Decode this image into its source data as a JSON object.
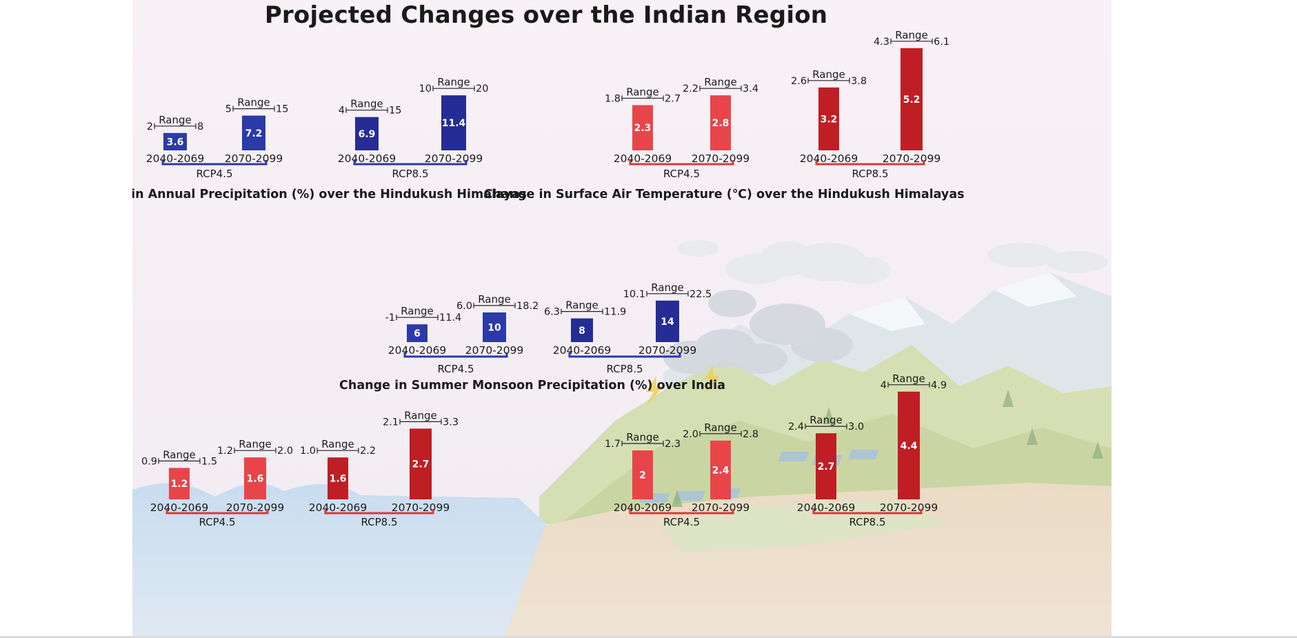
{
  "title": "Projected Changes over the Indian Region",
  "labels": {
    "range": "Range"
  },
  "colors": {
    "precip_rcp45": "#2b3aa8",
    "precip_rcp85": "#262c96",
    "temp_rcp45": "#e8454a",
    "temp_rcp85": "#bf1e24",
    "bracket_blue": "#2d37a4",
    "bracket_red": "#d63a3f",
    "bar_text": "#ffffff"
  },
  "chart_data": [
    {
      "type": "bar",
      "title": "Change in Annual Precipitation (%) over the Hindukush Himalayas",
      "unit_color": "blue",
      "groups": [
        {
          "name": "RCP4.5",
          "categories": [
            "2040-2069",
            "2070-2099"
          ],
          "values": [
            3.6,
            7.2
          ],
          "range": [
            [
              "2",
              "8"
            ],
            [
              "5",
              "15"
            ]
          ]
        },
        {
          "name": "RCP8.5",
          "categories": [
            "2040-2069",
            "2070-2099"
          ],
          "values": [
            6.9,
            11.4
          ],
          "range": [
            [
              "4",
              "15"
            ],
            [
              "10",
              "20"
            ]
          ]
        }
      ]
    },
    {
      "type": "bar",
      "title": "Change in Surface Air Temperature (℃) over the Hindukush Himalayas",
      "unit_color": "red",
      "groups": [
        {
          "name": "RCP4.5",
          "categories": [
            "2040-2069",
            "2070-2099"
          ],
          "values": [
            2.3,
            2.8
          ],
          "range": [
            [
              "1.8",
              "2.7"
            ],
            [
              "2.2",
              "3.4"
            ]
          ]
        },
        {
          "name": "RCP8.5",
          "categories": [
            "2040-2069",
            "2070-2099"
          ],
          "values": [
            3.2,
            5.2
          ],
          "range": [
            [
              "2.6",
              "3.8"
            ],
            [
              "4.3",
              "6.1"
            ]
          ]
        }
      ]
    },
    {
      "type": "bar",
      "title": "Change in Summer Monsoon Precipitation (%) over India",
      "unit_color": "blue",
      "groups": [
        {
          "name": "RCP4.5",
          "categories": [
            "2040-2069",
            "2070-2099"
          ],
          "values": [
            6,
            10
          ],
          "range": [
            [
              "-1",
              "11.4"
            ],
            [
              "6.0",
              "18.2"
            ]
          ]
        },
        {
          "name": "RCP8.5",
          "categories": [
            "2040-2069",
            "2070-2099"
          ],
          "values": [
            8,
            14
          ],
          "range": [
            [
              "6.3",
              "11.9"
            ],
            [
              "10.1",
              "22.5"
            ]
          ]
        }
      ]
    },
    {
      "type": "bar",
      "title": "",
      "unit_color": "red",
      "groups": [
        {
          "name": "RCP4.5",
          "categories": [
            "2040-2069",
            "2070-2099"
          ],
          "values": [
            1.2,
            1.6
          ],
          "range": [
            [
              "0.9",
              "1.5"
            ],
            [
              "1.2",
              "2.0"
            ]
          ]
        },
        {
          "name": "RCP8.5",
          "categories": [
            "2040-2069",
            "2070-2099"
          ],
          "values": [
            1.6,
            2.7
          ],
          "range": [
            [
              "1.0",
              "2.2"
            ],
            [
              "2.1",
              "3.3"
            ]
          ]
        }
      ]
    },
    {
      "type": "bar",
      "title": "",
      "unit_color": "red",
      "groups": [
        {
          "name": "RCP4.5",
          "categories": [
            "2040-2069",
            "2070-2099"
          ],
          "values": [
            2,
            2.4
          ],
          "range": [
            [
              "1.7",
              "2.3"
            ],
            [
              "2.0",
              "2.8"
            ]
          ]
        },
        {
          "name": "RCP8.5",
          "categories": [
            "2040-2069",
            "2070-2099"
          ],
          "values": [
            2.7,
            4.4
          ],
          "range": [
            [
              "2.4",
              "3.0"
            ],
            [
              "4",
              "4.9"
            ]
          ]
        }
      ]
    }
  ]
}
